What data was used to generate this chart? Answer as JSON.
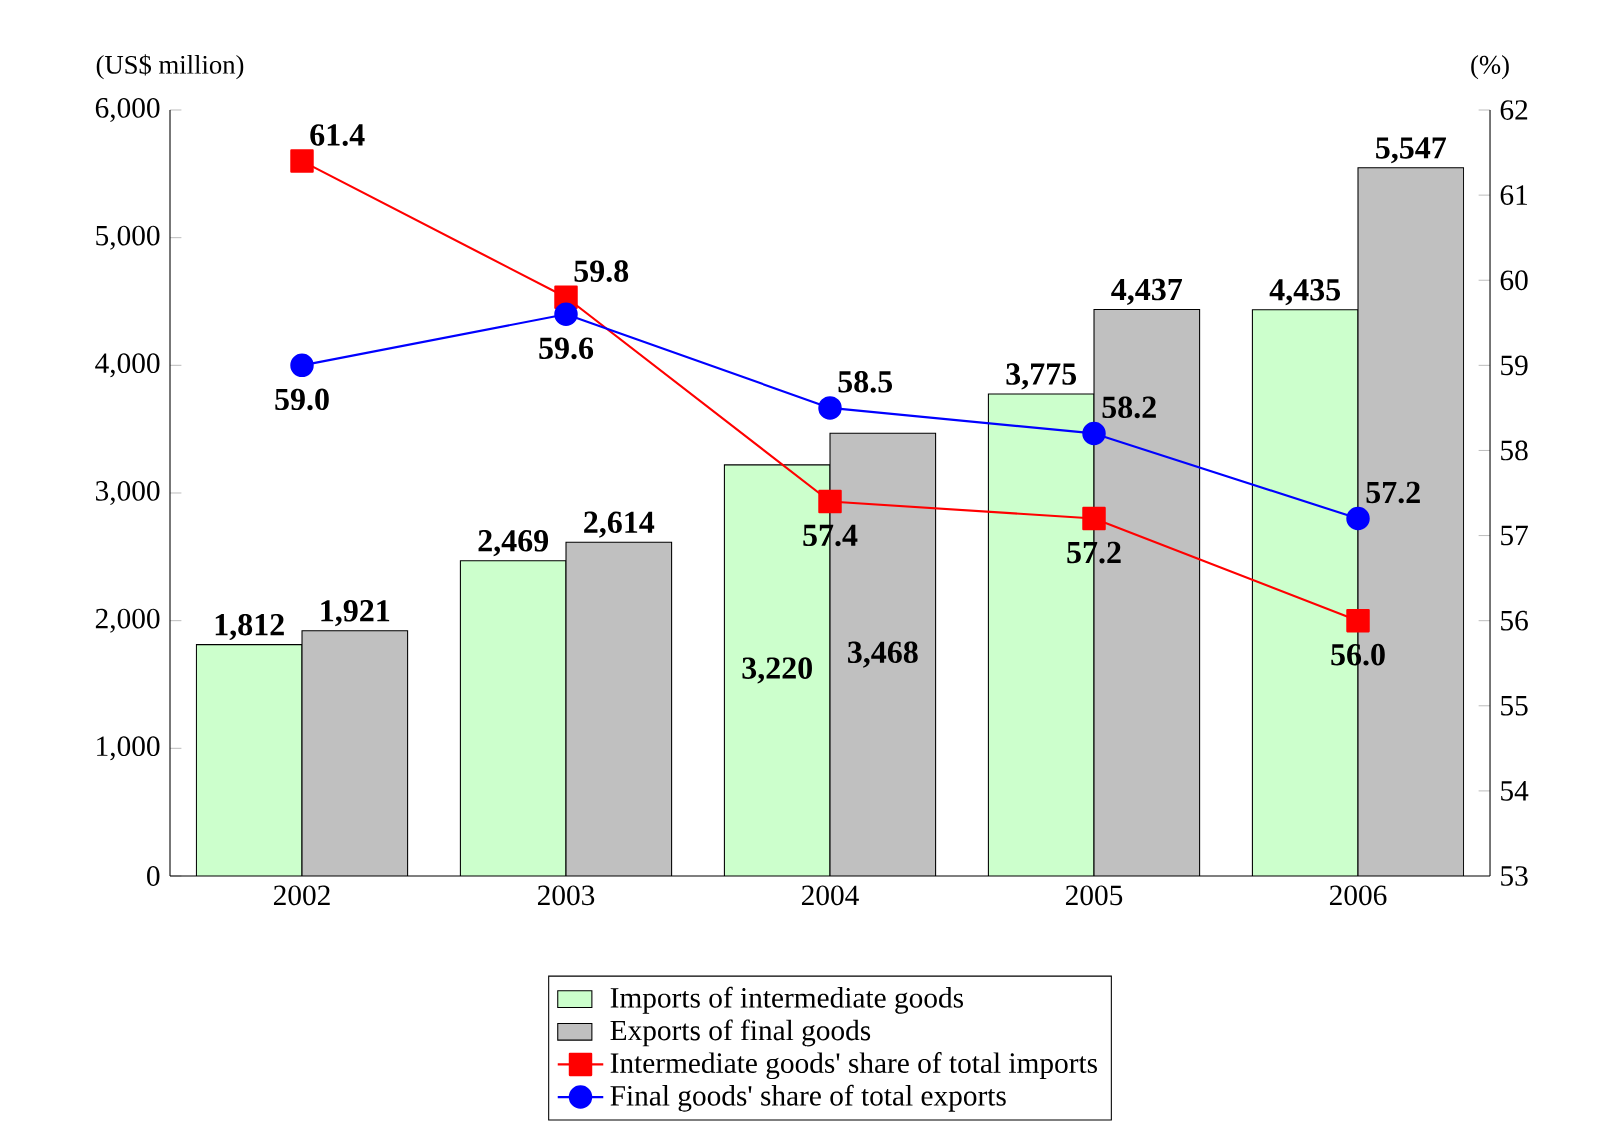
{
  "chart_data": {
    "type": "bar",
    "ylabel": "(US$ million)",
    "y2label": "(%)",
    "categories": [
      "2002",
      "2003",
      "2004",
      "2005",
      "2006"
    ],
    "series": [
      {
        "name": "Imports of intermediate goods",
        "color": "#ccffcc",
        "values": [
          1812,
          2469,
          3220,
          3775,
          4435
        ],
        "value_labels": [
          "1,812",
          "2,469",
          "3,220",
          "3,775",
          "4,435"
        ]
      },
      {
        "name": "Exports of final goods",
        "color": "#c0c0c0",
        "values": [
          1921,
          2614,
          3468,
          4437,
          5547
        ],
        "value_labels": [
          "1,921",
          "2,614",
          "3,468",
          "4,437",
          "5,547"
        ]
      },
      {
        "name": "Intermediate goods' share of total imports",
        "type": "line",
        "axis": "y2",
        "marker": "square",
        "color": "#ff0000",
        "values": [
          61.4,
          59.8,
          57.4,
          57.2,
          56.0
        ],
        "value_labels": [
          "61.4",
          "59.8",
          "57.4",
          "57.2",
          "56.0"
        ]
      },
      {
        "name": "Final goods' share of total exports",
        "type": "line",
        "axis": "y2",
        "marker": "circle",
        "color": "#0000ff",
        "values": [
          59.0,
          59.6,
          58.5,
          58.2,
          57.2
        ],
        "value_labels": [
          "59.0",
          "59.6",
          "58.5",
          "58.2",
          "57.2"
        ]
      }
    ],
    "ylim": [
      0,
      6000
    ],
    "yticks": [
      0,
      {
        "value": 1000,
        "label": "1,000"
      },
      {
        "value": 2000,
        "label": "2,000"
      },
      {
        "value": 3000,
        "label": "3,000"
      },
      {
        "value": 4000,
        "label": "4,000"
      },
      {
        "value": 5000,
        "label": "5,000"
      },
      {
        "value": 6000,
        "label": "6,000"
      }
    ],
    "y2lim": [
      53,
      62
    ],
    "y2ticks": [
      53,
      54,
      55,
      56,
      57,
      58,
      59,
      60,
      61,
      62
    ],
    "legend": "bottom",
    "grid": false
  }
}
